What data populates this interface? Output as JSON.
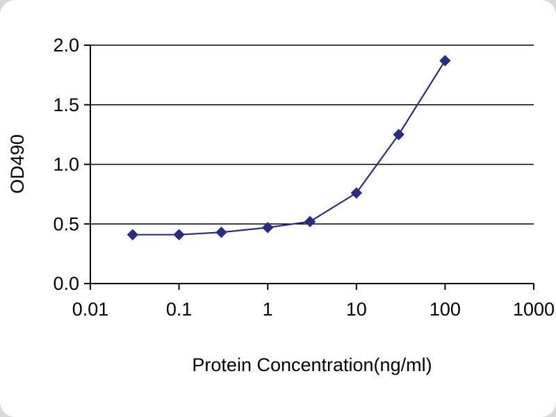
{
  "chart_data": {
    "type": "line",
    "title": "",
    "xlabel": "Protein Concentration(ng/ml)",
    "ylabel": "OD490",
    "x_scale": "log",
    "xlim": [
      0.01,
      1000
    ],
    "ylim": [
      0.0,
      2.0
    ],
    "x": [
      0.03,
      0.1,
      0.3,
      1,
      3,
      10,
      30,
      100
    ],
    "values": [
      0.41,
      0.41,
      0.43,
      0.47,
      0.52,
      0.76,
      1.25,
      1.87
    ],
    "x_ticks": [
      "0.01",
      "0.1",
      "1",
      "10",
      "100",
      "1000"
    ],
    "y_ticks": [
      "0.0",
      "0.5",
      "1.0",
      "1.5",
      "2.0"
    ],
    "grid": "horizontal",
    "legend": "none",
    "line_color": "#2b2b85",
    "marker": "diamond",
    "axis_color": "#000000",
    "background_color": "#ffffff"
  }
}
